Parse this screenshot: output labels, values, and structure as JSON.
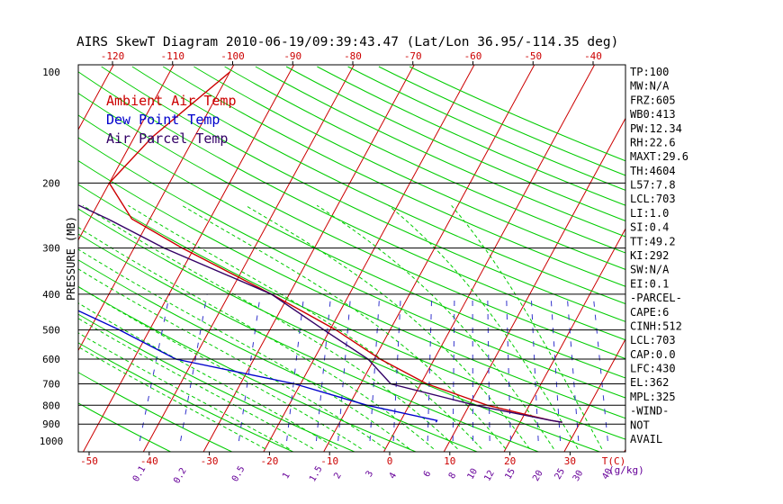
{
  "chart_data": {
    "type": "line",
    "title": "AIRS SkewT Diagram 2010-06-19/09:39:43.47 (Lat/Lon 36.95/-114.35 deg)",
    "ylabel": "PRESSURE (MB)",
    "x_unit_label": "T(C)",
    "mixing_unit_label": "(g/kg)",
    "pressure_ticks": [
      "100",
      "200",
      "300",
      "400",
      "500",
      "600",
      "700",
      "800",
      "900",
      "1000"
    ],
    "pressure_tick_values": [
      100,
      200,
      300,
      400,
      500,
      600,
      700,
      800,
      900,
      1000
    ],
    "temp_bottom_ticks": [
      -50,
      -40,
      -30,
      -20,
      -10,
      0,
      10,
      20,
      30
    ],
    "temp_top_ticks": [
      -120,
      -110,
      -100,
      -90,
      -80,
      -70,
      -60,
      -50,
      -40
    ],
    "mixing_ratio_ticks": [
      "0.1",
      "0.2",
      "0.5",
      "1",
      "1.5",
      "2",
      "3",
      "4",
      "6",
      "8",
      "10",
      "12",
      "15",
      "20",
      "25",
      "30",
      "40"
    ],
    "legend": [
      {
        "label": "Ambient Air Temp",
        "color": "#cc0000"
      },
      {
        "label": "Dew Point Temp",
        "color": "#0000cc"
      },
      {
        "label": "Air Parcel Temp",
        "color": "#330066"
      }
    ],
    "series": [
      {
        "name": "Ambient Air Temp",
        "color": "#cc0000",
        "points": [
          [
            100,
            -60
          ],
          [
            150,
            -67
          ],
          [
            200,
            -70
          ],
          [
            250,
            -63
          ],
          [
            300,
            -52
          ],
          [
            400,
            -33
          ],
          [
            500,
            -19
          ],
          [
            600,
            -9
          ],
          [
            700,
            1
          ],
          [
            800,
            13
          ],
          [
            860,
            22
          ],
          [
            880,
            25
          ],
          [
            890,
            27
          ]
        ]
      },
      {
        "name": "Dew Point Temp",
        "color": "#0000cc",
        "points": [
          [
            100,
            -99
          ],
          [
            150,
            -110
          ],
          [
            200,
            -107
          ],
          [
            300,
            -100
          ],
          [
            400,
            -71
          ],
          [
            500,
            -55
          ],
          [
            600,
            -43
          ],
          [
            700,
            -21
          ],
          [
            800,
            -7
          ],
          [
            880,
            6
          ],
          [
            890,
            6
          ]
        ]
      },
      {
        "name": "Air Parcel Temp",
        "color": "#330066",
        "points": [
          [
            100,
            -126
          ],
          [
            150,
            -102
          ],
          [
            200,
            -83
          ],
          [
            250,
            -67
          ],
          [
            300,
            -55
          ],
          [
            400,
            -33
          ],
          [
            500,
            -21
          ],
          [
            600,
            -11
          ],
          [
            700,
            -5
          ],
          [
            800,
            11
          ],
          [
            880,
            25
          ],
          [
            890,
            27
          ]
        ]
      }
    ]
  },
  "indices": [
    "TP:100",
    "MW:N/A",
    "FRZ:605",
    "WB0:413",
    "PW:12.34",
    "RH:22.6",
    "MAXT:29.6",
    "TH:4604",
    "L57:7.8",
    "LCL:703",
    "LI:1.0",
    "SI:0.4",
    "TT:49.2",
    "KI:292",
    "SW:N/A",
    "EI:0.1",
    "-PARCEL-",
    "CAPE:6",
    "CINH:512",
    "LCL:703",
    "CAP:0.0",
    "LFC:430",
    "EL:362",
    "MPL:325",
    "-WIND-",
    "NOT",
    "AVAIL"
  ],
  "colors": {
    "background": "#ffffff",
    "isotherm": "#cc0000",
    "dry_adiabat": "#00cc00",
    "moist_adiabat": "#00cc00",
    "mixing_ratio": "#3333cc",
    "isobar": "#000000",
    "axis_label_red": "#cc0000",
    "axis_label_purple": "#660099"
  }
}
